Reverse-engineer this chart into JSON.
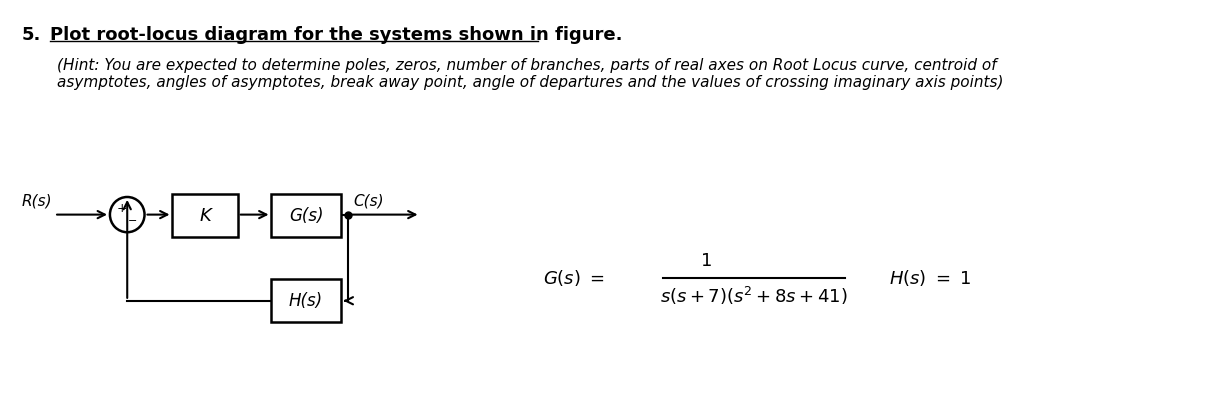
{
  "title_number": "5.",
  "title_text": "Plot root-locus diagram for the systems shown in figure.",
  "hint_line1": "(Hint: You are expected to determine poles, zeros, number of branches, parts of real axes on Root Locus curve, centroid of",
  "hint_line2": "asymptotes, angles of asymptotes, break away point, angle of departures and the values of crossing imaginary axis points)",
  "rs_label": "R(s)",
  "cs_label": "C(s)",
  "k_label": "K",
  "gs_label": "G(s)",
  "hs_label": "H(s)",
  "bg_color": "#ffffff",
  "text_color": "#000000",
  "title_fontsize": 13,
  "hint_fontsize": 11,
  "block_fontsize": 12,
  "formula_fontsize": 13
}
